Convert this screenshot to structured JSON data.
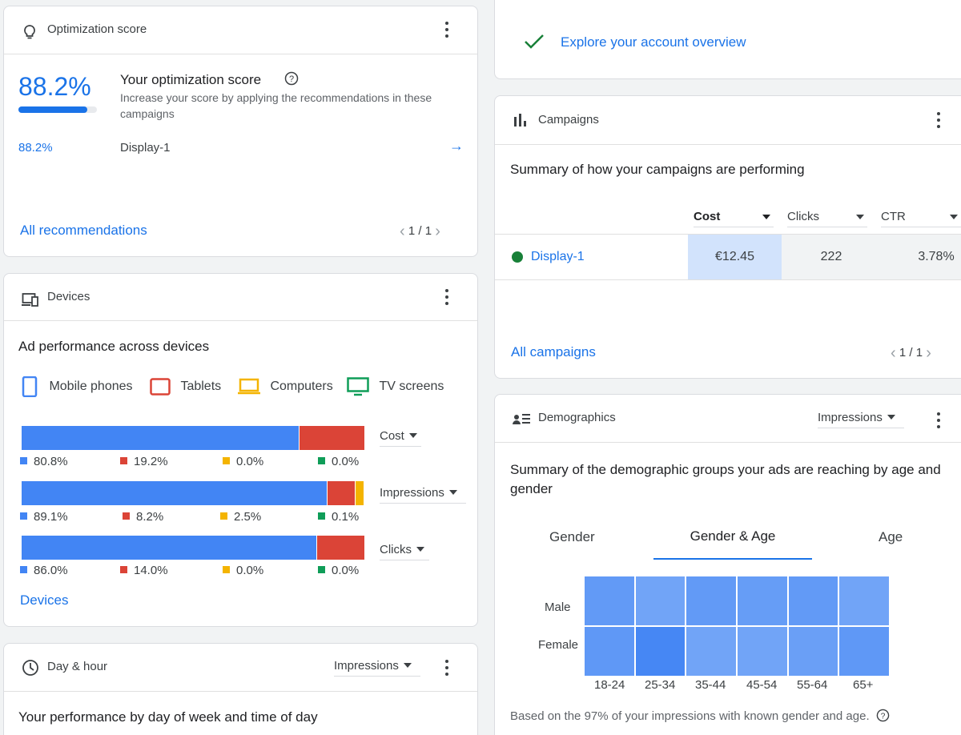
{
  "colors": {
    "blue": "#4285f4",
    "red": "#db4437",
    "yellow": "#f4b400",
    "green": "#0f9d58",
    "link": "#1a73e8"
  },
  "optimization": {
    "header_title": "Optimization score",
    "header_icon": "lightbulb-icon",
    "score": "88.2%",
    "score_fraction": 0.882,
    "title": "Your optimization score",
    "help_icon": "help-icon",
    "description": "Increase your score by applying the recommendations in these campaigns",
    "row_score": "88.2%",
    "row_campaign": "Display-1",
    "all_link": "All recommendations",
    "pager": "1 / 1"
  },
  "explore": {
    "label": "Explore your account overview",
    "icon": "check-icon"
  },
  "campaigns": {
    "header_title": "Campaigns",
    "header_icon": "bar-chart-icon",
    "summary": "Summary of how your campaigns are performing",
    "columns": [
      "Cost",
      "Clicks",
      "CTR"
    ],
    "row": {
      "name": "Display-1",
      "cost": "€12.45",
      "clicks": "222",
      "ctr": "3.78%"
    },
    "all_link": "All campaigns",
    "pager": "1 / 1"
  },
  "devices": {
    "header_title": "Devices",
    "header_icon": "devices-icon",
    "title": "Ad performance across devices",
    "legend": [
      "Mobile phones",
      "Tablets",
      "Computers",
      "TV screens"
    ],
    "metrics": [
      {
        "label": "Cost",
        "values": [
          80.8,
          19.2,
          0.0,
          0.0
        ],
        "texts": [
          "80.8%",
          "19.2%",
          "0.0%",
          "0.0%"
        ]
      },
      {
        "label": "Impressions",
        "values": [
          89.1,
          8.2,
          2.5,
          0.1
        ],
        "texts": [
          "89.1%",
          "8.2%",
          "2.5%",
          "0.1%"
        ]
      },
      {
        "label": "Clicks",
        "values": [
          86.0,
          14.0,
          0.0,
          0.0
        ],
        "texts": [
          "86.0%",
          "14.0%",
          "0.0%",
          "0.0%"
        ]
      }
    ],
    "link": "Devices"
  },
  "dayhour": {
    "header_title": "Day & hour",
    "header_icon": "clock-icon",
    "dropdown": "Impressions",
    "title": "Your performance by day of week and time of day"
  },
  "demographics": {
    "header_title": "Demographics",
    "header_icon": "demographics-icon",
    "dropdown": "Impressions",
    "summary": "Summary of the demographic groups your ads are reaching by age and gender",
    "tabs": [
      "Gender",
      "Gender & Age",
      "Age"
    ],
    "active_tab": "Gender & Age",
    "rows": [
      "Male",
      "Female"
    ],
    "cols": [
      "18-24",
      "25-34",
      "35-44",
      "45-54",
      "55-64",
      "65+"
    ],
    "intensity": [
      [
        0.55,
        0.35,
        0.55,
        0.5,
        0.55,
        0.35
      ],
      [
        0.6,
        0.95,
        0.35,
        0.35,
        0.45,
        0.6
      ]
    ],
    "footnote": "Based on the 97% of your impressions with known gender and age."
  }
}
